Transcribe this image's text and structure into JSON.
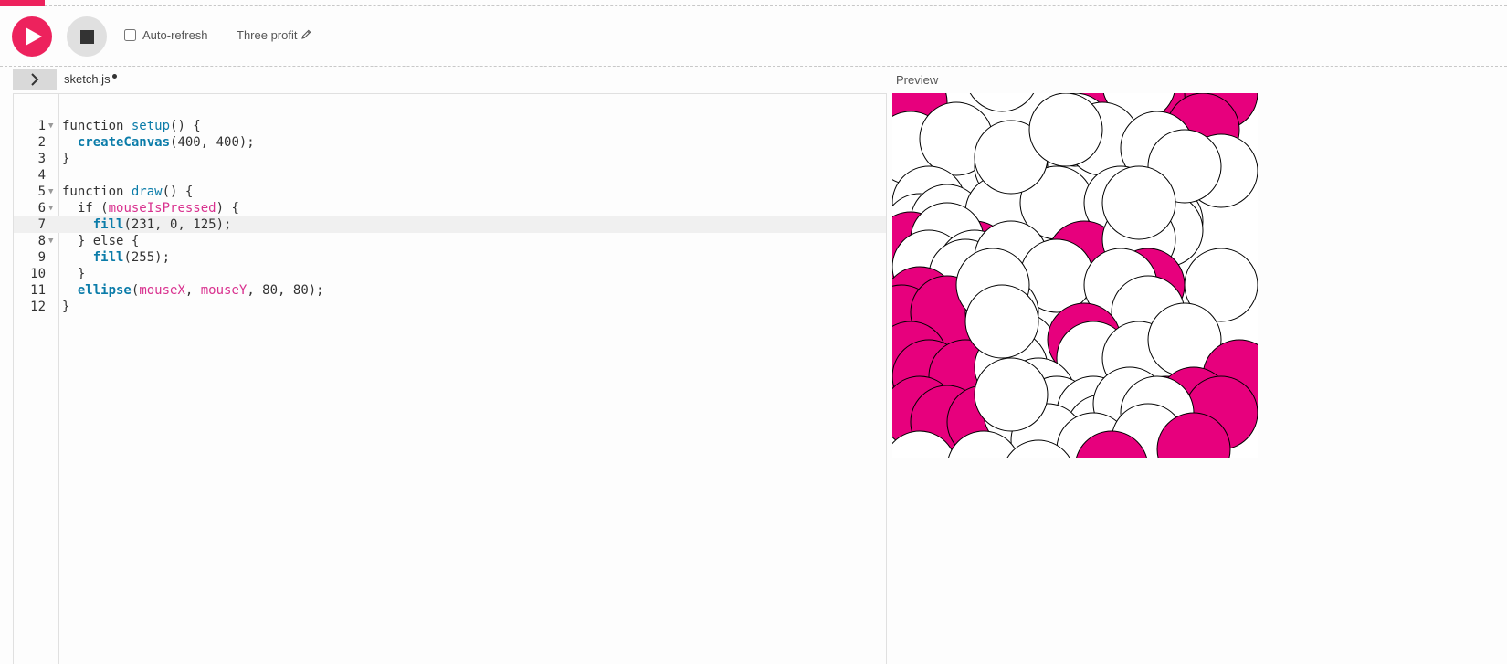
{
  "toolbar": {
    "play_label": "Play",
    "stop_label": "Stop",
    "auto_refresh_label": "Auto-refresh",
    "auto_refresh_checked": false,
    "project_name": "Three profit"
  },
  "editor": {
    "file_name": "sketch.js",
    "preview_label": "Preview",
    "lines": [
      {
        "n": "1",
        "fold": true,
        "tokens": [
          [
            "kw",
            "function "
          ],
          [
            "fn",
            "setup"
          ],
          [
            "p",
            "() {"
          ]
        ]
      },
      {
        "n": "2",
        "fold": false,
        "tokens": [
          [
            "p",
            "  "
          ],
          [
            "builtin",
            "createCanvas"
          ],
          [
            "p",
            "(400, 400);"
          ]
        ]
      },
      {
        "n": "3",
        "fold": false,
        "tokens": [
          [
            "p",
            "}"
          ]
        ]
      },
      {
        "n": "4",
        "fold": false,
        "tokens": [
          [
            "p",
            ""
          ]
        ]
      },
      {
        "n": "5",
        "fold": true,
        "tokens": [
          [
            "kw",
            "function "
          ],
          [
            "fn",
            "draw"
          ],
          [
            "p",
            "() {"
          ]
        ]
      },
      {
        "n": "6",
        "fold": true,
        "tokens": [
          [
            "p",
            "  "
          ],
          [
            "kw",
            "if "
          ],
          [
            "p",
            "("
          ],
          [
            "var",
            "mouseIsPressed"
          ],
          [
            "p",
            ") {"
          ]
        ]
      },
      {
        "n": "7",
        "fold": false,
        "active": true,
        "tokens": [
          [
            "p",
            "    "
          ],
          [
            "builtin",
            "fill"
          ],
          [
            "p",
            "(231, 0, 125);"
          ]
        ]
      },
      {
        "n": "8",
        "fold": true,
        "tokens": [
          [
            "p",
            "  } "
          ],
          [
            "kw",
            "else"
          ],
          [
            "p",
            " {"
          ]
        ]
      },
      {
        "n": "9",
        "fold": false,
        "tokens": [
          [
            "p",
            "    "
          ],
          [
            "builtin",
            "fill"
          ],
          [
            "p",
            "(255);"
          ]
        ]
      },
      {
        "n": "10",
        "fold": false,
        "tokens": [
          [
            "p",
            "  }"
          ]
        ]
      },
      {
        "n": "11",
        "fold": false,
        "tokens": [
          [
            "p",
            "  "
          ],
          [
            "builtin",
            "ellipse"
          ],
          [
            "p",
            "("
          ],
          [
            "var",
            "mouseX"
          ],
          [
            "p",
            ", "
          ],
          [
            "var",
            "mouseY"
          ],
          [
            "p",
            ", 80, 80);"
          ]
        ]
      },
      {
        "n": "12",
        "fold": false,
        "tokens": [
          [
            "p",
            "}"
          ]
        ]
      }
    ]
  },
  "preview": {
    "fill_pressed": "#e7007d",
    "fill_default": "#ffffff",
    "stroke": "#000000"
  },
  "colors": {
    "accent": "#ed225d",
    "stop_bg": "#e0e0e0"
  }
}
